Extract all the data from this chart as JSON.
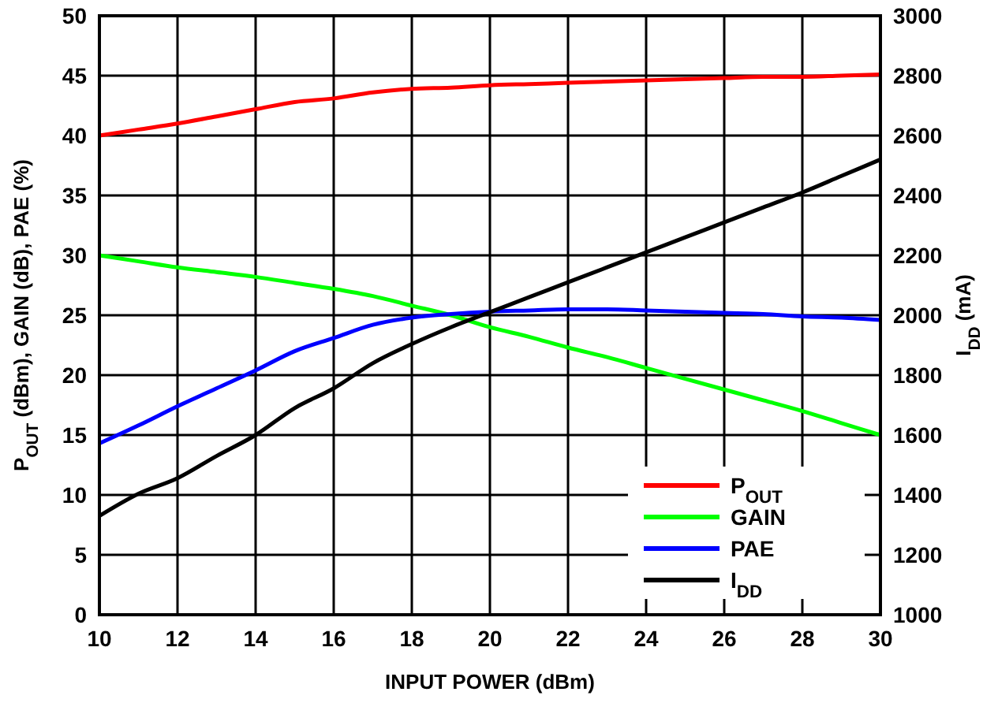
{
  "chart_data": {
    "type": "line",
    "xlabel": "INPUT POWER (dBm)",
    "ylabel": "P$_{OUT}$ (dBm), GAIN (dB), PAE (%)",
    "y2label": "I$_{DD}$ (mA)",
    "x": [
      10,
      11,
      12,
      13,
      14,
      15,
      16,
      17,
      18,
      19,
      20,
      21,
      22,
      23,
      24,
      25,
      26,
      27,
      28,
      29,
      30
    ],
    "series": [
      {
        "name": "P$_{OUT}$",
        "color": "#ff0000",
        "values": [
          40,
          40.5,
          41,
          41.6,
          42.2,
          42.8,
          43.1,
          43.6,
          43.9,
          44.0,
          44.2,
          44.3,
          44.4,
          44.5,
          44.6,
          44.7,
          44.8,
          44.9,
          44.9,
          45.0,
          45.1
        ]
      },
      {
        "name": "GAIN",
        "color": "#00ff00",
        "values": [
          30,
          29.5,
          29,
          28.6,
          28.2,
          27.7,
          27.2,
          26.6,
          25.8,
          25,
          24,
          23.2,
          22.3,
          21.5,
          20.6,
          19.7,
          18.8,
          17.9,
          17,
          16,
          15
        ]
      },
      {
        "name": "PAE",
        "color": "#0000ff",
        "values": [
          14.3,
          15.8,
          17.4,
          18.9,
          20.4,
          22,
          23.1,
          24.2,
          24.8,
          25.1,
          25.3,
          25.4,
          25.5,
          25.5,
          25.4,
          25.3,
          25.2,
          25.1,
          24.9,
          24.8,
          24.6
        ]
      },
      {
        "name": "I$_{DD}$",
        "color": "#000000",
        "axis": "y2",
        "values": [
          1330,
          1404,
          1456,
          1530,
          1600,
          1690,
          1756,
          1840,
          1904,
          1960,
          2010,
          2060,
          2110,
          2160,
          2210,
          2260,
          2310,
          2360,
          2410,
          2465,
          2520
        ]
      }
    ],
    "xlim": [
      10,
      30
    ],
    "xticks": [
      10,
      12,
      14,
      16,
      18,
      20,
      22,
      24,
      26,
      28,
      30
    ],
    "ylim": [
      0,
      50
    ],
    "yticks": [
      0,
      5,
      10,
      15,
      20,
      25,
      30,
      35,
      40,
      45,
      50
    ],
    "y2lim": [
      1000,
      3000
    ],
    "y2ticks": [
      1000,
      1200,
      1400,
      1600,
      1800,
      2000,
      2200,
      2400,
      2600,
      2800,
      3000
    ],
    "grid": true,
    "legend": "bottom right",
    "line_style": "solid"
  }
}
